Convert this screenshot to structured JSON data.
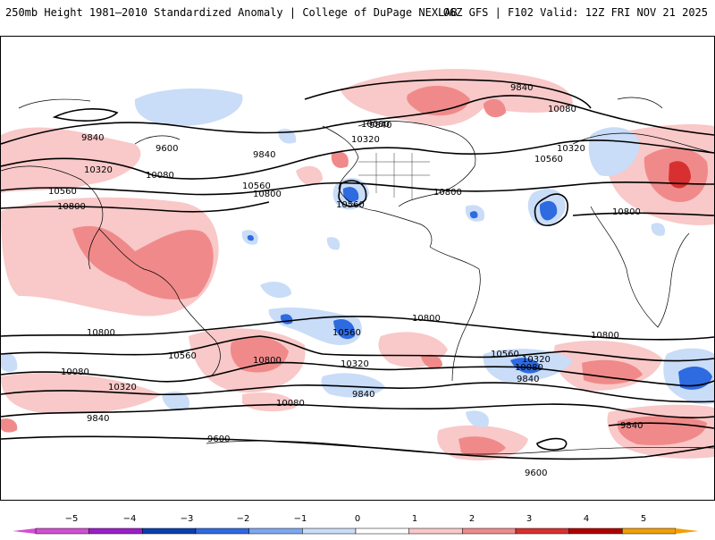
{
  "header": {
    "title_left": "250mb Height 1981–2010 Standardized Anomaly | College of DuPage NEXLAB",
    "title_right": "06Z GFS | F102 Valid: 12Z FRI NOV 21 2025"
  },
  "map": {
    "contour_labels": [
      {
        "id": "c9840-na",
        "text": "9840"
      },
      {
        "id": "c10080-na",
        "text": "10080"
      },
      {
        "id": "c10320-na",
        "text": "10320"
      },
      {
        "id": "c9840-pac",
        "text": "9840"
      },
      {
        "id": "c9600-pac",
        "text": "9600"
      },
      {
        "id": "c10320-pac",
        "text": "10320"
      },
      {
        "id": "c10080-pac",
        "text": "10080"
      },
      {
        "id": "c9840-pac2",
        "text": "9840"
      },
      {
        "id": "c10560-pac",
        "text": "10560"
      },
      {
        "id": "c10800-pac",
        "text": "10800"
      },
      {
        "id": "c10800-w",
        "text": "10800"
      },
      {
        "id": "c10560-w",
        "text": "10560"
      },
      {
        "id": "c10560-low",
        "text": "10560"
      },
      {
        "id": "c10800-e",
        "text": "10800"
      },
      {
        "id": "c9840-atl",
        "text": "9840"
      },
      {
        "id": "c10080-atl",
        "text": "10080"
      },
      {
        "id": "c10320-atl",
        "text": "10320"
      },
      {
        "id": "c10560-atl",
        "text": "10560"
      },
      {
        "id": "c10800-eu",
        "text": "10800"
      },
      {
        "id": "c10800-sa",
        "text": "10800"
      },
      {
        "id": "c10560-sp",
        "text": "10560"
      },
      {
        "id": "c10800-sw",
        "text": "10800"
      },
      {
        "id": "c10560-sw",
        "text": "10560"
      },
      {
        "id": "c10800-sc",
        "text": "10800"
      },
      {
        "id": "c10080-sw",
        "text": "10080"
      },
      {
        "id": "c10320-sw",
        "text": "10320"
      },
      {
        "id": "c10320-sc",
        "text": "10320"
      },
      {
        "id": "c9840-sc",
        "text": "9840"
      },
      {
        "id": "c10080-sc",
        "text": "10080"
      },
      {
        "id": "c9840-sw",
        "text": "9840"
      },
      {
        "id": "c10560-satl",
        "text": "10560"
      },
      {
        "id": "c10320-satl",
        "text": "10320"
      },
      {
        "id": "c10080-satl",
        "text": "10080"
      },
      {
        "id": "c9840-satl",
        "text": "9840"
      },
      {
        "id": "c10800-ind",
        "text": "10800"
      },
      {
        "id": "c9840-se",
        "text": "9840"
      },
      {
        "id": "c9600-s",
        "text": "9600"
      },
      {
        "id": "c9600-se",
        "text": "9600"
      }
    ]
  },
  "legend": {
    "tick_labels": [
      "−5",
      "−4",
      "−3",
      "−2",
      "−1",
      "0",
      "1",
      "2",
      "3",
      "4",
      "5"
    ],
    "colors": [
      "#d24fd2",
      "#9b1fc9",
      "#0b3fb0",
      "#2e6ae0",
      "#7da7f0",
      "#c9dcf8",
      "#ffffff",
      "#f9c8c8",
      "#f08a8a",
      "#d83030",
      "#b00000",
      "#f2a000"
    ]
  }
}
